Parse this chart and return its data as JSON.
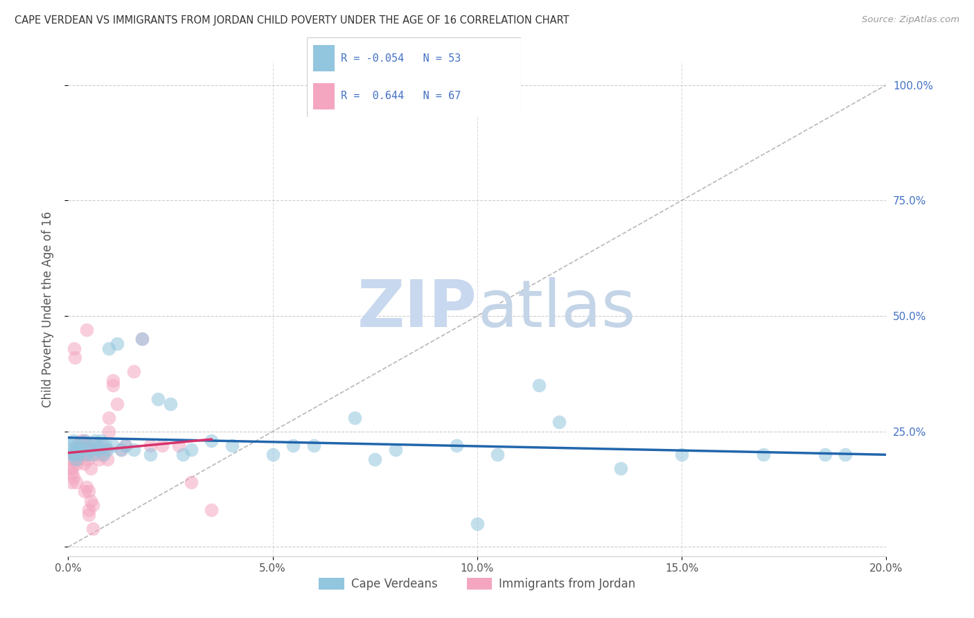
{
  "title": "CAPE VERDEAN VS IMMIGRANTS FROM JORDAN CHILD POVERTY UNDER THE AGE OF 16 CORRELATION CHART",
  "source": "Source: ZipAtlas.com",
  "ylabel": "Child Poverty Under the Age of 16",
  "xlim": [
    0,
    20
  ],
  "ylim": [
    -2,
    105
  ],
  "xtick_vals": [
    0,
    5,
    10,
    15,
    20
  ],
  "xtick_labels": [
    "0.0%",
    "5.0%",
    "10.0%",
    "15.0%",
    "20.0%"
  ],
  "ytick_vals": [
    0,
    25,
    50,
    75,
    100
  ],
  "ytick_labels": [
    "",
    "25.0%",
    "50.0%",
    "75.0%",
    "100.0%"
  ],
  "legend_label1": "Cape Verdeans",
  "legend_label2": "Immigrants from Jordan",
  "blue_color": "#92c5de",
  "pink_color": "#f4a6c0",
  "blue_line_color": "#2166ac",
  "pink_line_color": "#d6336c",
  "watermark_zip": "ZIP",
  "watermark_atlas": "atlas",
  "watermark_color": "#c8d8ee",
  "blue_x": [
    0.05,
    0.08,
    0.1,
    0.12,
    0.15,
    0.18,
    0.2,
    0.22,
    0.25,
    0.3,
    0.35,
    0.4,
    0.45,
    0.5,
    0.55,
    0.6,
    0.65,
    0.7,
    0.75,
    0.8,
    0.85,
    0.9,
    0.95,
    1.0,
    1.1,
    1.2,
    1.3,
    1.4,
    1.6,
    1.8,
    2.0,
    2.2,
    2.5,
    2.8,
    3.0,
    3.5,
    4.0,
    5.0,
    5.5,
    6.0,
    7.0,
    7.5,
    8.0,
    9.5,
    10.0,
    10.5,
    11.5,
    12.0,
    13.5,
    15.0,
    17.0,
    18.5,
    19.0
  ],
  "blue_y": [
    22,
    20,
    21,
    23,
    20,
    22,
    19,
    21,
    20,
    22,
    21,
    23,
    20,
    22,
    21,
    20,
    23,
    22,
    21,
    23,
    20,
    22,
    21,
    43,
    22,
    44,
    21,
    22,
    21,
    45,
    20,
    32,
    31,
    20,
    21,
    23,
    22,
    20,
    22,
    22,
    28,
    19,
    21,
    22,
    5,
    20,
    35,
    27,
    17,
    20,
    20,
    20,
    20
  ],
  "pink_x": [
    0.05,
    0.07,
    0.08,
    0.1,
    0.1,
    0.12,
    0.12,
    0.14,
    0.15,
    0.15,
    0.17,
    0.18,
    0.2,
    0.2,
    0.22,
    0.24,
    0.25,
    0.25,
    0.27,
    0.28,
    0.3,
    0.3,
    0.32,
    0.33,
    0.35,
    0.37,
    0.38,
    0.4,
    0.42,
    0.43,
    0.45,
    0.48,
    0.5,
    0.52,
    0.55,
    0.6,
    0.65,
    0.7,
    0.75,
    0.8,
    0.85,
    0.9,
    0.95,
    1.0,
    1.1,
    1.2,
    1.3,
    1.4,
    1.6,
    1.8,
    2.0,
    2.3,
    2.7,
    3.0,
    3.5,
    0.5,
    0.55,
    0.6,
    0.55,
    0.5,
    0.45,
    0.4,
    0.38,
    1.0,
    1.1,
    0.5,
    0.6
  ],
  "pink_y": [
    17,
    14,
    19,
    16,
    17,
    20,
    15,
    20,
    43,
    19,
    41,
    20,
    14,
    21,
    18,
    22,
    19,
    20,
    22,
    21,
    20,
    21,
    23,
    21,
    22,
    20,
    21,
    23,
    22,
    20,
    47,
    19,
    22,
    21,
    20,
    21,
    22,
    20,
    19,
    22,
    20,
    21,
    19,
    28,
    35,
    31,
    21,
    22,
    38,
    45,
    22,
    22,
    22,
    14,
    8,
    12,
    10,
    9,
    17,
    8,
    13,
    12,
    18,
    25,
    36,
    7,
    4
  ],
  "blue_R": -0.054,
  "pink_R": 0.644,
  "blue_N": 53,
  "pink_N": 67
}
